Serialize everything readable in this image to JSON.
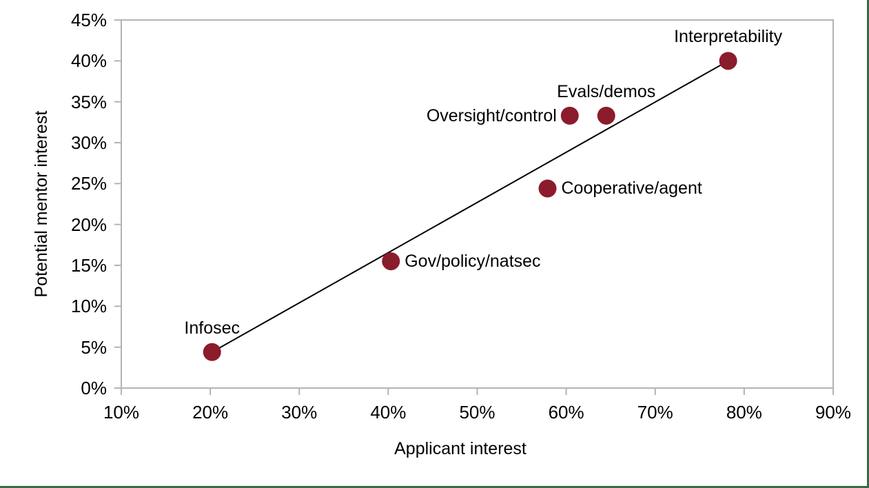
{
  "frame": {
    "border_right_color": "#3A6B47",
    "border_bottom_color": "#3A6B47",
    "background": "#FFFFFF"
  },
  "chart_data": {
    "type": "scatter",
    "title": "",
    "xlabel": "Applicant interest",
    "ylabel": "Potential mentor interest",
    "xlim": [
      10,
      90
    ],
    "ylim": [
      0,
      45
    ],
    "grid": false,
    "legend": "none",
    "axis_color": "#B3B3B3",
    "point_color": "#8B1C2C",
    "point_radius_px": 13,
    "trendline": {
      "x1": 20.2,
      "y1": 4.4,
      "x2": 78.2,
      "y2": 40.0,
      "color": "#000000"
    },
    "x_ticks": [
      {
        "value": 10,
        "label": "10%"
      },
      {
        "value": 20,
        "label": "20%"
      },
      {
        "value": 30,
        "label": "30%"
      },
      {
        "value": 40,
        "label": "40%"
      },
      {
        "value": 50,
        "label": "50%"
      },
      {
        "value": 60,
        "label": "60%"
      },
      {
        "value": 70,
        "label": "70%"
      },
      {
        "value": 80,
        "label": "80%"
      },
      {
        "value": 90,
        "label": "90%"
      }
    ],
    "y_ticks": [
      {
        "value": 0,
        "label": "0%"
      },
      {
        "value": 5,
        "label": "5%"
      },
      {
        "value": 10,
        "label": "10%"
      },
      {
        "value": 15,
        "label": "15%"
      },
      {
        "value": 20,
        "label": "20%"
      },
      {
        "value": 25,
        "label": "25%"
      },
      {
        "value": 30,
        "label": "30%"
      },
      {
        "value": 35,
        "label": "35%"
      },
      {
        "value": 40,
        "label": "40%"
      },
      {
        "value": 45,
        "label": "45%"
      }
    ],
    "points": [
      {
        "label": "Infosec",
        "x": 20.2,
        "y": 4.4,
        "label_position": "above"
      },
      {
        "label": "Gov/policy/natsec",
        "x": 40.3,
        "y": 15.5,
        "label_position": "right"
      },
      {
        "label": "Cooperative/agent",
        "x": 57.9,
        "y": 24.4,
        "label_position": "right"
      },
      {
        "label": "Oversight/control",
        "x": 60.4,
        "y": 33.3,
        "label_position": "left"
      },
      {
        "label": "Evals/demos",
        "x": 64.5,
        "y": 33.3,
        "label_position": "above"
      },
      {
        "label": "Interpretability",
        "x": 78.2,
        "y": 40.0,
        "label_position": "above"
      }
    ]
  }
}
